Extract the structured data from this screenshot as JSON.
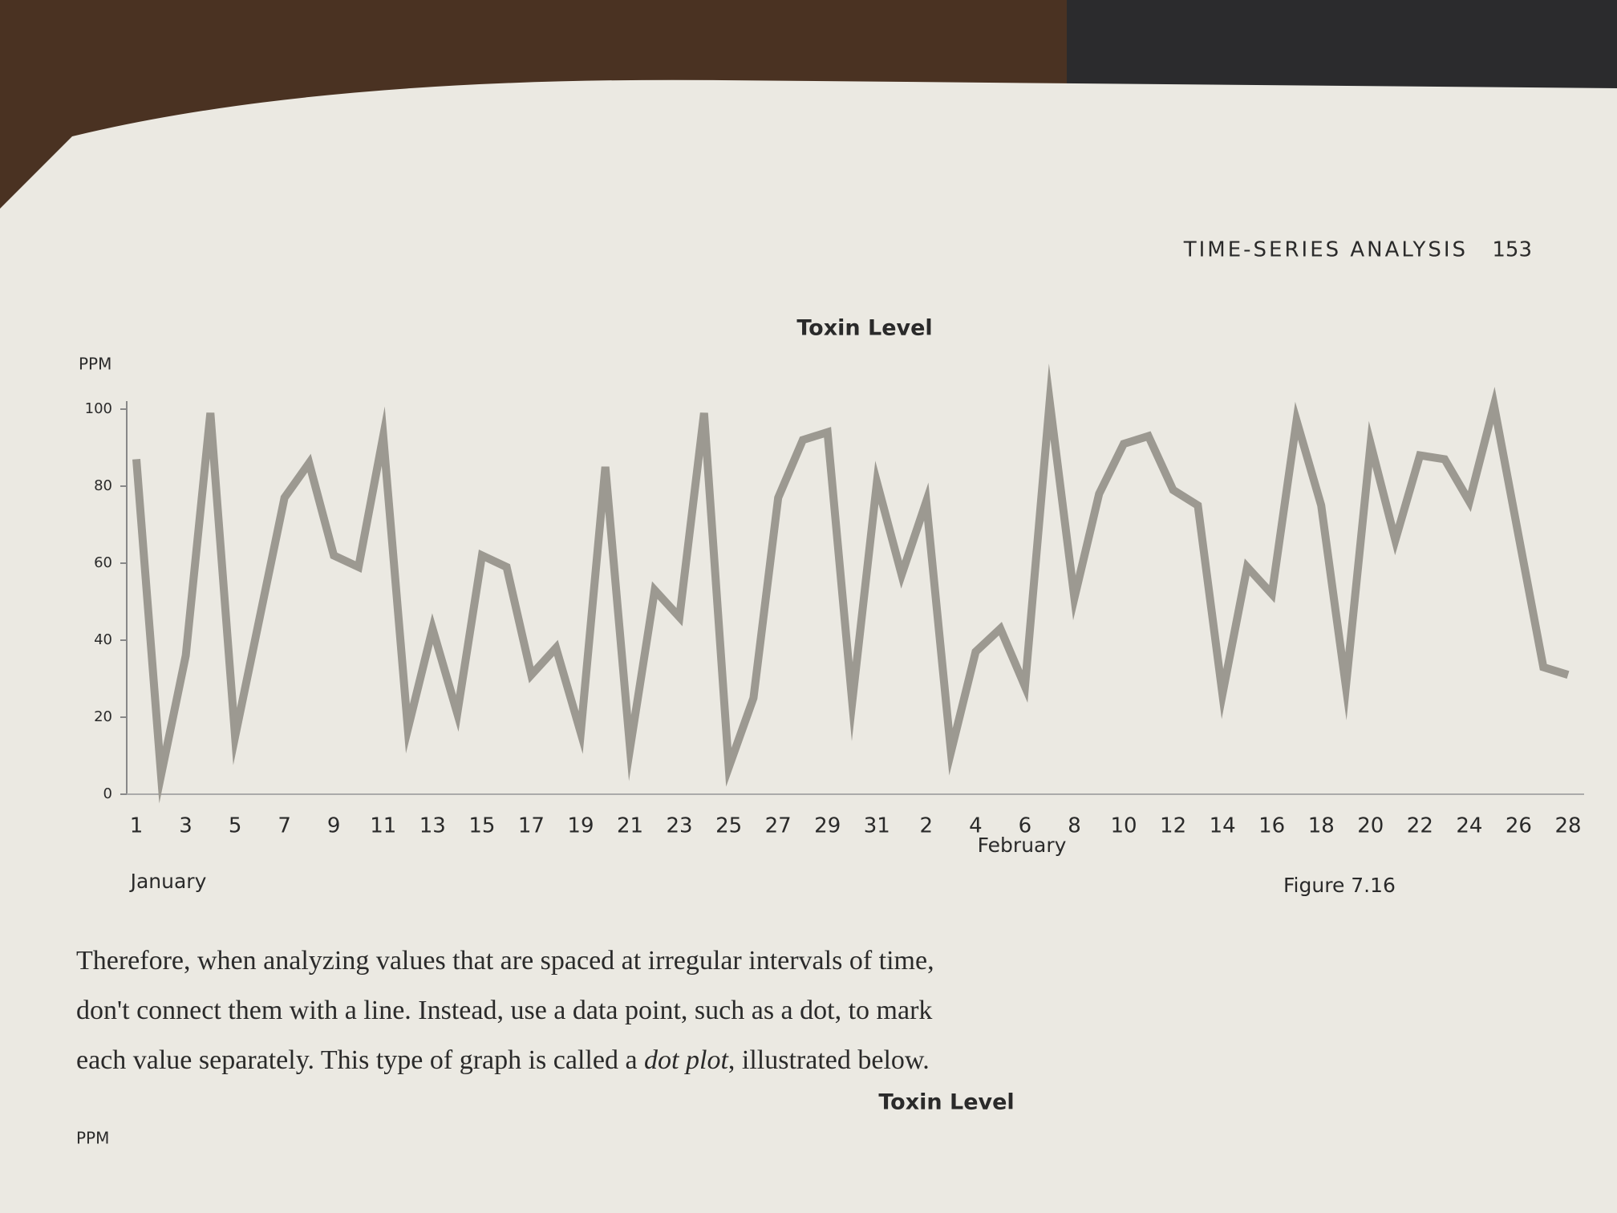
{
  "header": {
    "section": "TIME-SERIES ANALYSIS",
    "page_number": "153"
  },
  "chart_data": {
    "type": "line",
    "title": "Toxin Level",
    "y_label": "PPM",
    "categories": [
      "1",
      null,
      "3",
      null,
      "5",
      null,
      "7",
      null,
      "9",
      null,
      "11",
      null,
      "13",
      null,
      "15",
      null,
      "17",
      null,
      "19",
      null,
      "21",
      null,
      "23",
      null,
      "25",
      null,
      "27",
      null,
      "29",
      null,
      "31",
      null,
      "2",
      null,
      "4",
      null,
      "6",
      null,
      "8",
      null,
      "10",
      null,
      "12",
      null,
      "14",
      null,
      "16",
      null,
      "18",
      null,
      "20",
      null,
      "22",
      null,
      "24",
      null,
      "26",
      null,
      "28"
    ],
    "groups": [
      {
        "label": "January",
        "start": 0
      },
      {
        "label": "February",
        "start": 31
      }
    ],
    "series": [
      {
        "name": "Toxin Level",
        "color": "#9c9991",
        "values": [
          87,
          5,
          36,
          99,
          15,
          46,
          77,
          86,
          62,
          59,
          93,
          17,
          43,
          21,
          62,
          59,
          31,
          38,
          16,
          85,
          12,
          53,
          46,
          99,
          7,
          25,
          77,
          92,
          94,
          24,
          81,
          57,
          76,
          11,
          37,
          43,
          28,
          102,
          51,
          78,
          91,
          93,
          79,
          75,
          26,
          59,
          52,
          97,
          75,
          28,
          91,
          66,
          88,
          87,
          76,
          101,
          67,
          33,
          31
        ]
      }
    ],
    "ylim": [
      0,
      100
    ],
    "yticks": [
      0,
      20,
      40,
      60,
      80,
      100
    ],
    "grid": false
  },
  "caption": "Figure 7.16",
  "paragraph": [
    [
      "Therefore, when analyzing values that are spaced at irregular intervals of time,"
    ],
    [
      "don't connect them with a line. Instead, use a data point, such as a dot, to mark"
    ],
    [
      "each value separately. This type of graph is called a ",
      "dot plot",
      ", illustrated below."
    ]
  ],
  "next_figure": {
    "title": "Toxin Level",
    "y_label": "PPM"
  }
}
